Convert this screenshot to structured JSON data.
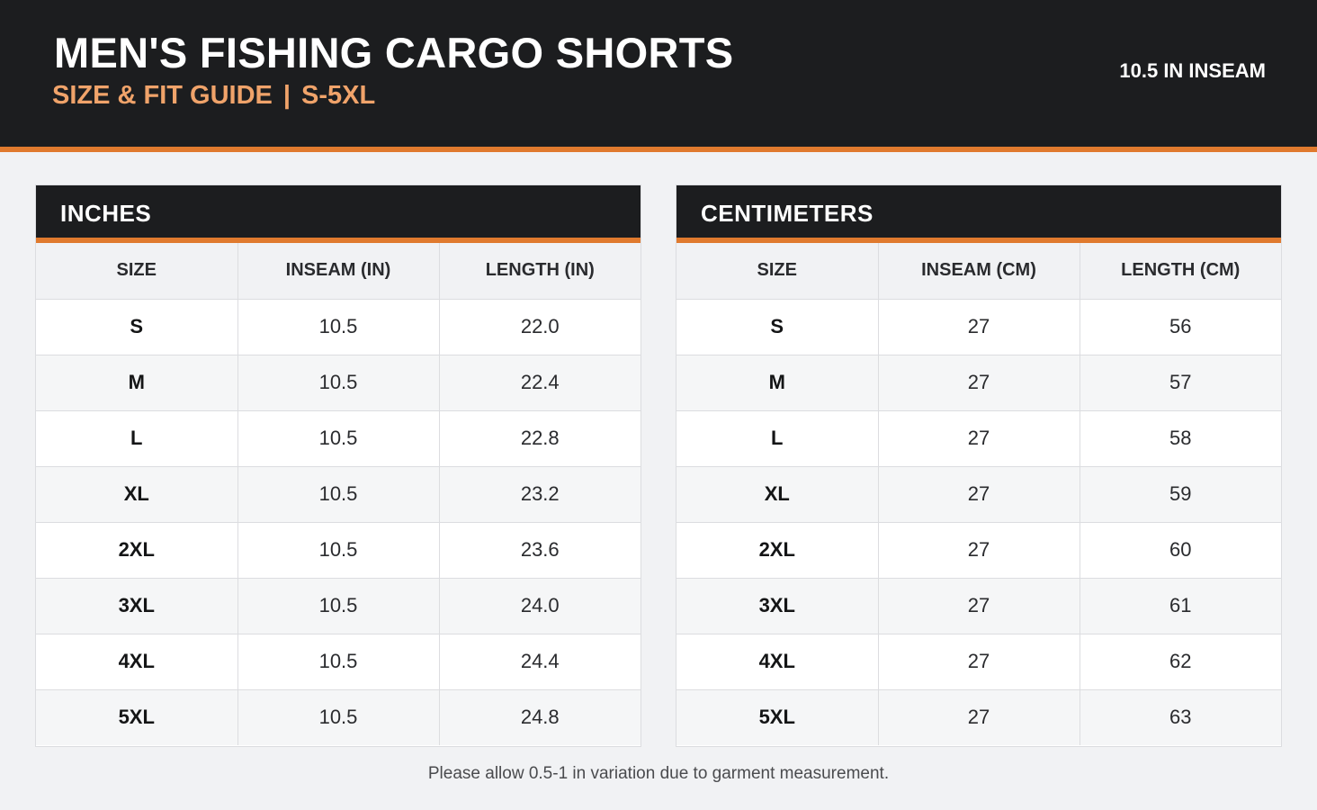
{
  "header": {
    "title": "MEN'S FISHING CARGO SHORTS",
    "subtitle_left": "SIZE & FIT GUIDE",
    "subtitle_sep": "|",
    "subtitle_right": "S-5XL",
    "inseam_badge": "10.5 IN INSEAM"
  },
  "colors": {
    "dark": "#1c1d1f",
    "accent": "#e07a2e",
    "accent_light": "#f0a36a",
    "background": "#f1f2f4"
  },
  "inches": {
    "title": "INCHES",
    "columns": [
      "SIZE",
      "INSEAM (IN)",
      "LENGTH (IN)"
    ],
    "rows": [
      [
        "S",
        "10.5",
        "22.0"
      ],
      [
        "M",
        "10.5",
        "22.4"
      ],
      [
        "L",
        "10.5",
        "22.8"
      ],
      [
        "XL",
        "10.5",
        "23.2"
      ],
      [
        "2XL",
        "10.5",
        "23.6"
      ],
      [
        "3XL",
        "10.5",
        "24.0"
      ],
      [
        "4XL",
        "10.5",
        "24.4"
      ],
      [
        "5XL",
        "10.5",
        "24.8"
      ]
    ]
  },
  "centimeters": {
    "title": "CENTIMETERS",
    "columns": [
      "SIZE",
      "INSEAM (CM)",
      "LENGTH (CM)"
    ],
    "rows": [
      [
        "S",
        "27",
        "56"
      ],
      [
        "M",
        "27",
        "57"
      ],
      [
        "L",
        "27",
        "58"
      ],
      [
        "XL",
        "27",
        "59"
      ],
      [
        "2XL",
        "27",
        "60"
      ],
      [
        "3XL",
        "27",
        "61"
      ],
      [
        "4XL",
        "27",
        "62"
      ],
      [
        "5XL",
        "27",
        "63"
      ]
    ]
  },
  "footer": {
    "note": "Please allow 0.5-1 in variation due to garment measurement."
  }
}
